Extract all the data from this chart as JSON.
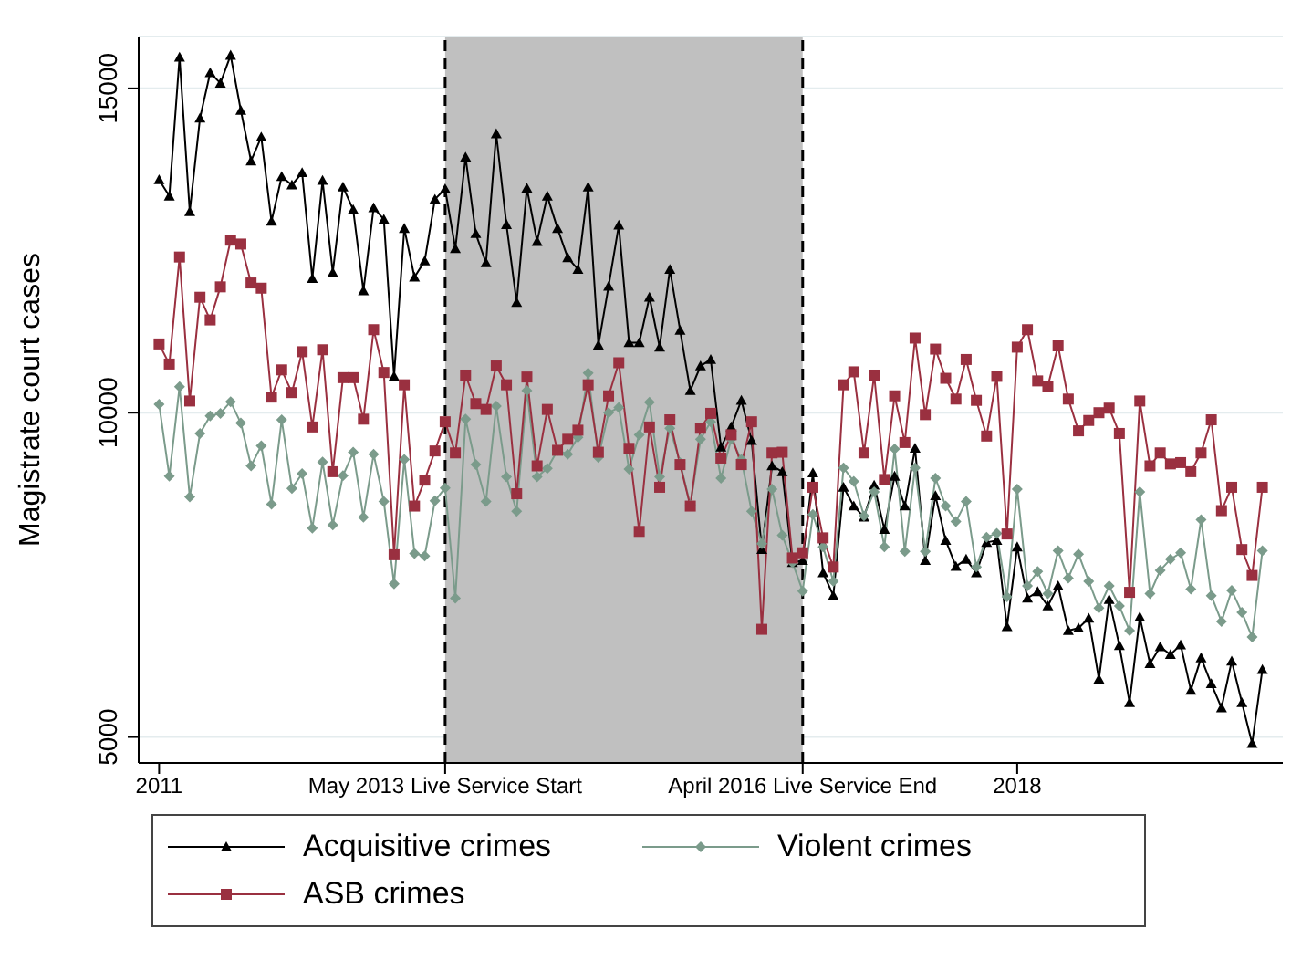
{
  "chart_data": {
    "type": "line",
    "ylabel": "Magistrate court cases",
    "x": [
      "2011-01",
      "2011-02",
      "2011-03",
      "2011-04",
      "2011-05",
      "2011-06",
      "2011-07",
      "2011-08",
      "2011-09",
      "2011-10",
      "2011-11",
      "2011-12",
      "2012-01",
      "2012-02",
      "2012-03",
      "2012-04",
      "2012-05",
      "2012-06",
      "2012-07",
      "2012-08",
      "2012-09",
      "2012-10",
      "2012-11",
      "2012-12",
      "2013-01",
      "2013-02",
      "2013-03",
      "2013-04",
      "2013-05",
      "2013-06",
      "2013-07",
      "2013-08",
      "2013-09",
      "2013-10",
      "2013-11",
      "2013-12",
      "2014-01",
      "2014-02",
      "2014-03",
      "2014-04",
      "2014-05",
      "2014-06",
      "2014-07",
      "2014-08",
      "2014-09",
      "2014-10",
      "2014-11",
      "2014-12",
      "2015-01",
      "2015-02",
      "2015-03",
      "2015-04",
      "2015-05",
      "2015-06",
      "2015-07",
      "2015-08",
      "2015-09",
      "2015-10",
      "2015-11",
      "2015-12",
      "2016-01",
      "2016-02",
      "2016-03",
      "2016-04",
      "2016-05",
      "2016-06",
      "2016-07",
      "2016-08",
      "2016-09",
      "2016-10",
      "2016-11",
      "2016-12",
      "2017-01",
      "2017-02",
      "2017-03",
      "2017-04",
      "2017-05",
      "2017-06",
      "2017-07",
      "2017-08",
      "2017-09",
      "2017-10",
      "2017-11",
      "2017-12",
      "2018-01",
      "2018-02",
      "2018-03",
      "2018-04",
      "2018-05",
      "2018-06",
      "2018-07",
      "2018-08",
      "2018-09",
      "2018-10",
      "2018-11",
      "2018-12",
      "2019-01",
      "2019-02",
      "2019-03",
      "2019-04",
      "2019-05",
      "2019-06",
      "2019-07",
      "2019-08",
      "2019-09",
      "2019-10",
      "2019-11",
      "2019-12",
      "2020-01"
    ],
    "series": [
      {
        "name": "Acquisitive crimes",
        "color": "#000000",
        "marker": "triangle",
        "values": [
          13590,
          13340,
          15480,
          13100,
          14540,
          15240,
          15080,
          15510,
          14660,
          13880,
          14250,
          12950,
          13640,
          13510,
          13700,
          12070,
          13580,
          12160,
          13480,
          13130,
          11880,
          13160,
          12980,
          10560,
          12840,
          12090,
          12340,
          13290,
          13450,
          12530,
          13940,
          12760,
          12310,
          14300,
          12900,
          11700,
          13460,
          12640,
          13340,
          12840,
          12390,
          12210,
          13480,
          11040,
          11950,
          12890,
          11080,
          11080,
          11780,
          11010,
          12210,
          11270,
          10340,
          10720,
          10820,
          9470,
          9780,
          10190,
          9570,
          7890,
          9180,
          9090,
          7690,
          7720,
          9070,
          7530,
          7180,
          8850,
          8560,
          8390,
          8880,
          8200,
          9020,
          8560,
          9450,
          7720,
          8720,
          8030,
          7630,
          7740,
          7530,
          8000,
          8030,
          6700,
          7930,
          7140,
          7240,
          7020,
          7330,
          6640,
          6680,
          6830,
          5890,
          7120,
          6410,
          5530,
          6850,
          6130,
          6390,
          6270,
          6420,
          5720,
          6220,
          5820,
          5450,
          6170,
          5530,
          4900,
          6040
        ]
      },
      {
        "name": "Violent crimes",
        "color": "#7b9b8b",
        "marker": "diamond",
        "values": [
          10130,
          9020,
          10400,
          8700,
          9680,
          9950,
          9990,
          10170,
          9840,
          9180,
          9490,
          8590,
          9890,
          8830,
          9060,
          8220,
          9240,
          8270,
          9030,
          9390,
          8390,
          9360,
          8630,
          7360,
          9280,
          7830,
          7790,
          8640,
          8840,
          7140,
          9900,
          9200,
          8630,
          10100,
          9010,
          8480,
          10340,
          9010,
          9140,
          9420,
          9360,
          9620,
          10610,
          9310,
          10000,
          10080,
          9130,
          9660,
          10160,
          9010,
          9760,
          9230,
          8580,
          9590,
          9860,
          8990,
          9590,
          9280,
          8480,
          7980,
          8820,
          8110,
          7690,
          7250,
          8430,
          7930,
          7400,
          9150,
          8940,
          8410,
          8780,
          7930,
          9440,
          7860,
          9150,
          7860,
          8990,
          8560,
          8320,
          8630,
          7620,
          8080,
          8140,
          7160,
          8820,
          7330,
          7550,
          7210,
          7870,
          7450,
          7820,
          7400,
          6990,
          7330,
          7020,
          6640,
          8780,
          7210,
          7570,
          7740,
          7840,
          7280,
          8350,
          7180,
          6780,
          7260,
          6920,
          6540,
          7870
        ]
      },
      {
        "name": "ASB crimes",
        "color": "#9a3040",
        "marker": "square",
        "values": [
          11060,
          10750,
          12400,
          10180,
          11780,
          11430,
          11940,
          12660,
          12600,
          12000,
          11920,
          10240,
          10660,
          10310,
          10940,
          9780,
          10970,
          9090,
          10540,
          10540,
          9900,
          11280,
          10620,
          7810,
          10430,
          8560,
          8960,
          9410,
          9860,
          9380,
          10580,
          10140,
          10050,
          10720,
          10430,
          8750,
          10550,
          9180,
          10050,
          9420,
          9590,
          9730,
          10430,
          9390,
          10260,
          10770,
          9450,
          8170,
          9780,
          8850,
          9890,
          9200,
          8560,
          9760,
          9990,
          9300,
          9660,
          9200,
          9860,
          6660,
          9380,
          9390,
          7760,
          7840,
          8850,
          8070,
          7620,
          10430,
          10630,
          9380,
          10580,
          8970,
          10260,
          9540,
          11150,
          9970,
          10980,
          10530,
          10210,
          10820,
          10190,
          9640,
          10560,
          8130,
          11010,
          11280,
          10490,
          10410,
          11030,
          10210,
          9720,
          9880,
          10000,
          10070,
          9680,
          7230,
          10180,
          9180,
          9380,
          9210,
          9230,
          9090,
          9380,
          9890,
          8490,
          8850,
          7890,
          7490,
          8850
        ]
      }
    ],
    "xlim": [
      "2010-11",
      "2020-03"
    ],
    "xticks": [
      {
        "value": "2011-01",
        "label": "2011"
      },
      {
        "value": "2013-05",
        "label": "May 2013 Live Service Start"
      },
      {
        "value": "2016-04",
        "label": "April 2016 Live Service End"
      },
      {
        "value": "2018-01",
        "label": "2018"
      }
    ],
    "ylim": [
      4600,
      15800
    ],
    "yticks": [
      5000,
      10000,
      15000
    ],
    "bands": [
      {
        "axis": "x",
        "from": "2013-05",
        "to": "2016-04",
        "color": "#c0c0c0"
      }
    ],
    "ref_lines": [
      {
        "axis": "x",
        "value": "2013-05",
        "color": "#000000",
        "line_style": "dashed"
      },
      {
        "axis": "x",
        "value": "2016-04",
        "color": "#000000",
        "line_style": "dashed"
      }
    ],
    "grid": "y",
    "legend": "bottom"
  }
}
